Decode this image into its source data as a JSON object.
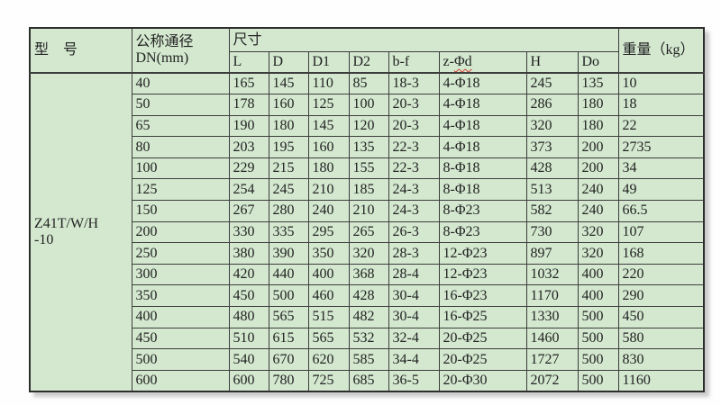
{
  "page": {
    "background_color": "#fefefe",
    "cell_fill_color": "#d3e8cf",
    "border_color": "#3d3d3d"
  },
  "table": {
    "header": {
      "model": "型　号",
      "dn_line1": "公称通径",
      "dn_line2": "DN(mm)",
      "size": "尺寸",
      "weight": "重量（kg）",
      "size_columns": {
        "l": "L",
        "d": "D",
        "d1": "D1",
        "d2": "D2",
        "bf": "b-f",
        "zd_prefix": "z-",
        "zd_suffix": "Φd",
        "h": "H",
        "do": "Do"
      }
    },
    "model_line1": "Z41T/W/H",
    "model_line2": "-10",
    "columns_order": [
      "dn",
      "l",
      "d",
      "d1",
      "d2",
      "bf",
      "zd",
      "h",
      "do",
      "weight"
    ],
    "rows": [
      [
        "40",
        "165",
        "145",
        "110",
        "85",
        "18-3",
        "4-Φ18",
        "245",
        "135",
        "10"
      ],
      [
        "50",
        "178",
        "160",
        "125",
        "100",
        "20-3",
        "4-Φ18",
        "286",
        "180",
        "18"
      ],
      [
        "65",
        "190",
        "180",
        "145",
        "120",
        "20-3",
        "4-Φ18",
        "320",
        "180",
        "22"
      ],
      [
        "80",
        "203",
        "195",
        "160",
        "135",
        "22-3",
        "4-Φ18",
        "373",
        "200",
        "2735"
      ],
      [
        "100",
        "229",
        "215",
        "180",
        "155",
        "22-3",
        "8-Φ18",
        "428",
        "200",
        "34"
      ],
      [
        "125",
        "254",
        "245",
        "210",
        "185",
        "24-3",
        "8-Φ18",
        "513",
        "240",
        "49"
      ],
      [
        "150",
        "267",
        "280",
        "240",
        "210",
        "24-3",
        "8-Φ23",
        "582",
        "240",
        "66.5"
      ],
      [
        "200",
        "330",
        "335",
        "295",
        "265",
        "26-3",
        "8-Φ23",
        "730",
        "320",
        "107"
      ],
      [
        "250",
        "380",
        "390",
        "350",
        "320",
        "28-3",
        "12-Φ23",
        "897",
        "320",
        "168"
      ],
      [
        "300",
        "420",
        "440",
        "400",
        "368",
        "28-4",
        "12-Φ23",
        "1032",
        "400",
        "220"
      ],
      [
        "350",
        "450",
        "500",
        "460",
        "428",
        "30-4",
        "16-Φ23",
        "1170",
        "400",
        "290"
      ],
      [
        "400",
        "480",
        "565",
        "515",
        "482",
        "30-4",
        "16-Φ25",
        "1330",
        "500",
        "450"
      ],
      [
        "450",
        "510",
        "615",
        "565",
        "532",
        "32-4",
        "20-Φ25",
        "1460",
        "500",
        "580"
      ],
      [
        "500",
        "540",
        "670",
        "620",
        "585",
        "34-4",
        "20-Φ25",
        "1727",
        "500",
        "830"
      ],
      [
        "600",
        "600",
        "780",
        "725",
        "685",
        "36-5",
        "20-Φ30",
        "2072",
        "500",
        "1160"
      ]
    ]
  }
}
